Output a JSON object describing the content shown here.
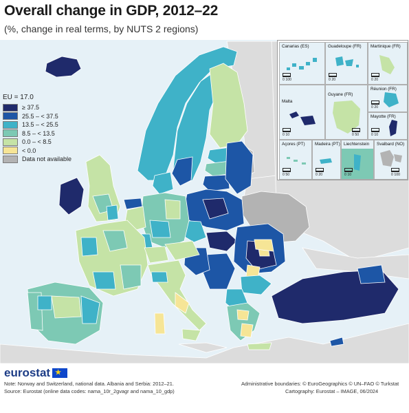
{
  "title": "Overall change in GDP, 2012–22",
  "subtitle": "(%, change in real terms, by NUTS 2 regions)",
  "legend": {
    "header": "EU = 17.0",
    "classes": [
      {
        "label": "≥ 37.5",
        "color": "#1f2a6b"
      },
      {
        "label": "25.5 – < 37.5",
        "color": "#1d56a6"
      },
      {
        "label": "13.5 – < 25.5",
        "color": "#3fb2c8"
      },
      {
        "label": "8.5 – < 13.5",
        "color": "#7dc9b4"
      },
      {
        "label": "0.0 – < 8.5",
        "color": "#c5e3a6"
      },
      {
        "label": "< 0.0",
        "color": "#f6e596"
      },
      {
        "label": "Data not available",
        "color": "#b3b3b3"
      }
    ]
  },
  "colors": {
    "sea": "#e6f1f7",
    "non_covered_land": "#dcdcdc",
    "border": "#ffffff"
  },
  "insets": {
    "canarias": {
      "label": "Canarias (ES)",
      "scale": "0   100"
    },
    "guadeloupe": {
      "label": "Guadeloupe (FR)",
      "scale": "0   20"
    },
    "martinique": {
      "label": "Martinique (FR)",
      "scale": "0   20"
    },
    "reunion": {
      "label": "Réunion (FR)",
      "scale": "0   20"
    },
    "malta": {
      "label": "Malta",
      "scale": "0   10"
    },
    "guyane": {
      "label": "Guyane (FR)",
      "scale": "0   50"
    },
    "mayotte": {
      "label": "Mayotte (FR)",
      "scale": "0   10"
    },
    "acores": {
      "label": "Açores (PT)",
      "scale": "0   50"
    },
    "madeira": {
      "label": "Madeira (PT)",
      "scale": "0   20"
    },
    "liechtenstein": {
      "label": "Liechtenstein",
      "scale": "0   10"
    },
    "svalbard": {
      "label": "Svalbard (NO)",
      "scale": "0   100"
    }
  },
  "footer": {
    "brand": "eurostat",
    "note": "Note: Norway and Switzerland, national data. Albania and Serbia: 2012–21.",
    "source": "Source: Eurostat (online data codes: nama_10r_2gvagr and nama_10_gdp)",
    "admin": "Administrative boundaries: © EuroGeographics © UN–FAO © Turkstat",
    "cartography": "Cartography: Eurostat – IMAGE, 06/2024"
  }
}
